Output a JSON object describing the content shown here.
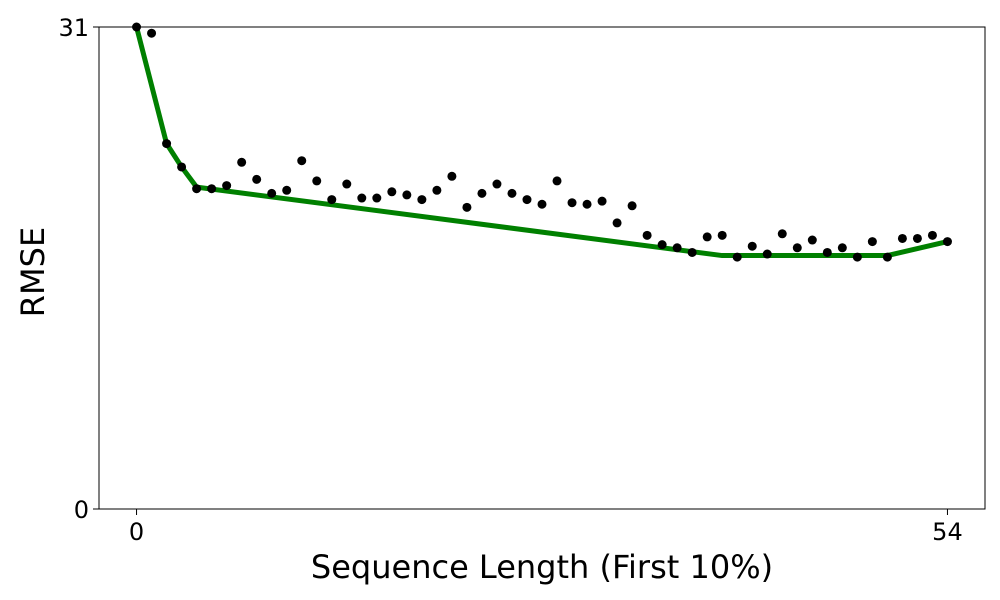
{
  "chart_data": {
    "type": "scatter",
    "title": "",
    "xlabel": "Sequence Length (First 10%)",
    "ylabel": "RMSE",
    "xlim": [
      -2.5,
      56.5
    ],
    "ylim": [
      0,
      31
    ],
    "x_ticks": [
      {
        "value": 0,
        "label": "0"
      },
      {
        "value": 54,
        "label": "54"
      }
    ],
    "y_ticks": [
      {
        "value": 0,
        "label": "0"
      },
      {
        "value": 31,
        "label": "31"
      }
    ],
    "grid": false,
    "legend": "none",
    "series": [
      {
        "kind": "points",
        "color": "#000000",
        "x": [
          0,
          1,
          2,
          3,
          4,
          5,
          6,
          7,
          8,
          9,
          10,
          11,
          12,
          13,
          14,
          15,
          16,
          17,
          18,
          19,
          20,
          21,
          22,
          23,
          24,
          25,
          26,
          27,
          28,
          29,
          30,
          31,
          32,
          33,
          34,
          35,
          36,
          37,
          38,
          39,
          40,
          41,
          42,
          43,
          44,
          45,
          46,
          47,
          48,
          49,
          50,
          51,
          52,
          53,
          54
        ],
        "y": [
          31.0,
          30.6,
          23.5,
          22.0,
          20.6,
          20.6,
          20.8,
          22.3,
          21.2,
          20.3,
          20.5,
          22.4,
          21.1,
          19.9,
          20.9,
          20.0,
          20.0,
          20.4,
          20.2,
          19.9,
          20.5,
          21.4,
          19.4,
          20.3,
          20.9,
          20.3,
          19.9,
          19.6,
          21.1,
          19.7,
          19.6,
          19.8,
          18.4,
          19.5,
          17.6,
          17.0,
          16.8,
          16.5,
          17.5,
          17.6,
          16.2,
          16.9,
          16.4,
          17.7,
          16.8,
          17.3,
          16.5,
          16.8,
          16.2,
          17.2,
          16.2,
          17.4,
          17.4,
          17.6,
          17.2
        ]
      },
      {
        "kind": "line",
        "color": "#008000",
        "x": [
          0,
          2,
          3,
          4,
          39,
          49,
          50,
          54
        ],
        "y": [
          31.0,
          23.5,
          22.0,
          20.7,
          16.3,
          16.3,
          16.3,
          17.2
        ]
      }
    ]
  }
}
